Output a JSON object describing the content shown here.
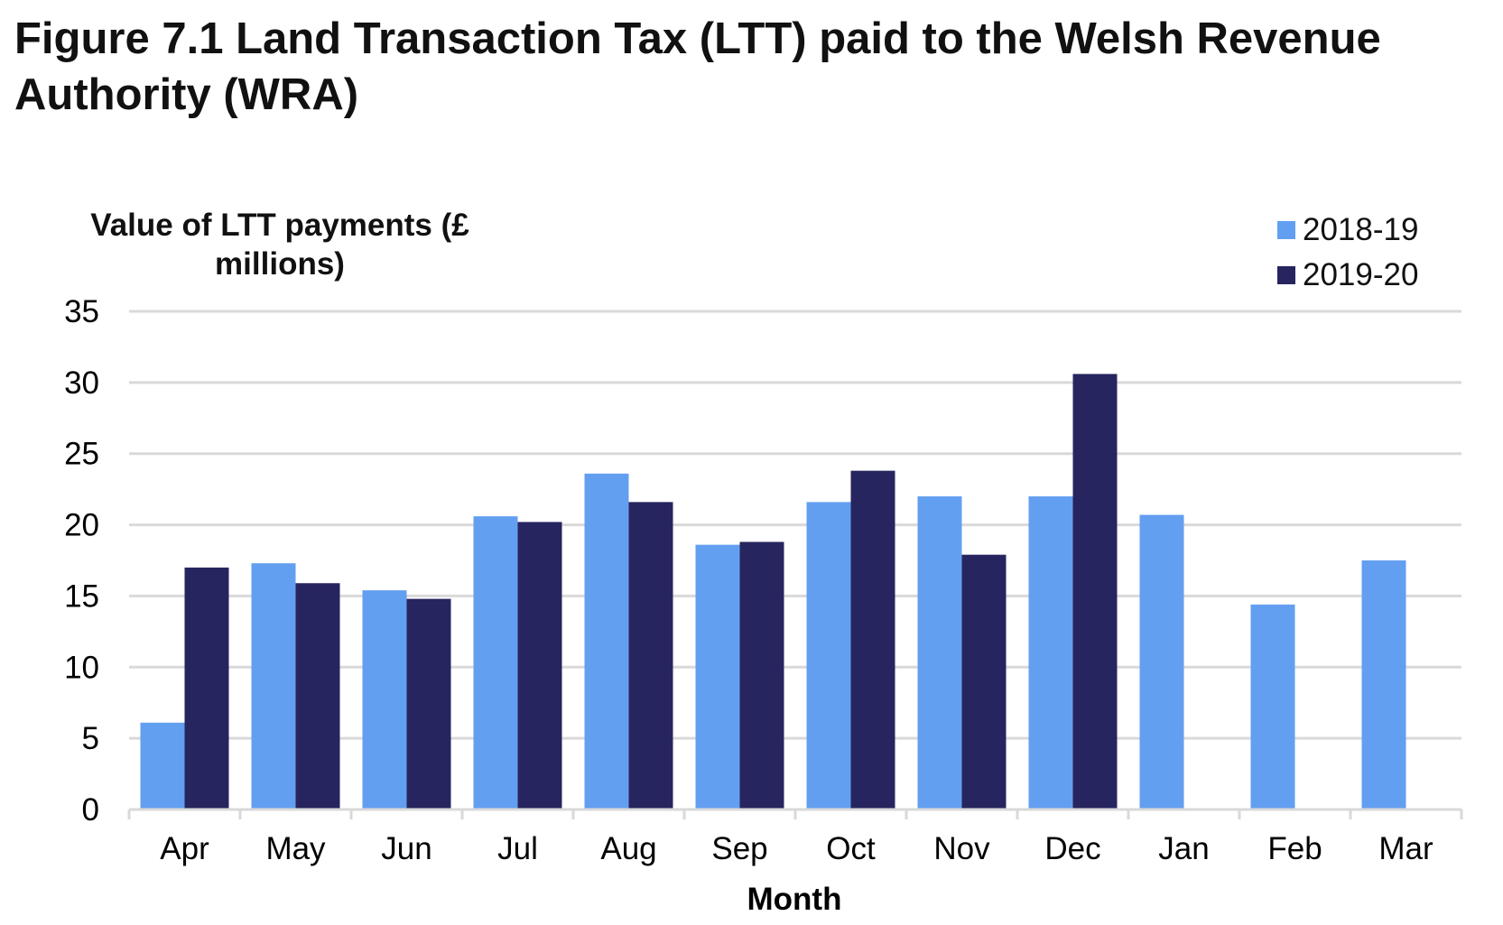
{
  "title": "Figure 7.1  Land Transaction Tax (LTT) paid to the Welsh Revenue Authority (WRA)",
  "chart_data": {
    "type": "bar",
    "title": "Figure 7.1  Land Transaction Tax (LTT) paid to the Welsh Revenue Authority (WRA)",
    "ylabel": "Value of LTT payments (£ millions)",
    "xlabel": "Month",
    "ylim": [
      0,
      35
    ],
    "yticks": [
      0,
      5,
      10,
      15,
      20,
      25,
      30,
      35
    ],
    "grid": true,
    "legend_position": "top-right",
    "categories": [
      "Apr",
      "May",
      "Jun",
      "Jul",
      "Aug",
      "Sep",
      "Oct",
      "Nov",
      "Dec",
      "Jan",
      "Feb",
      "Mar"
    ],
    "series": [
      {
        "name": "2018-19",
        "color": "#639FF0",
        "values": [
          6.1,
          17.3,
          15.4,
          20.6,
          23.6,
          18.6,
          21.6,
          22.0,
          22.0,
          20.7,
          14.4,
          17.5
        ]
      },
      {
        "name": "2019-20",
        "color": "#27255F",
        "values": [
          17.0,
          15.9,
          14.8,
          20.2,
          21.6,
          18.8,
          23.8,
          17.9,
          30.6,
          null,
          null,
          null
        ]
      }
    ]
  }
}
